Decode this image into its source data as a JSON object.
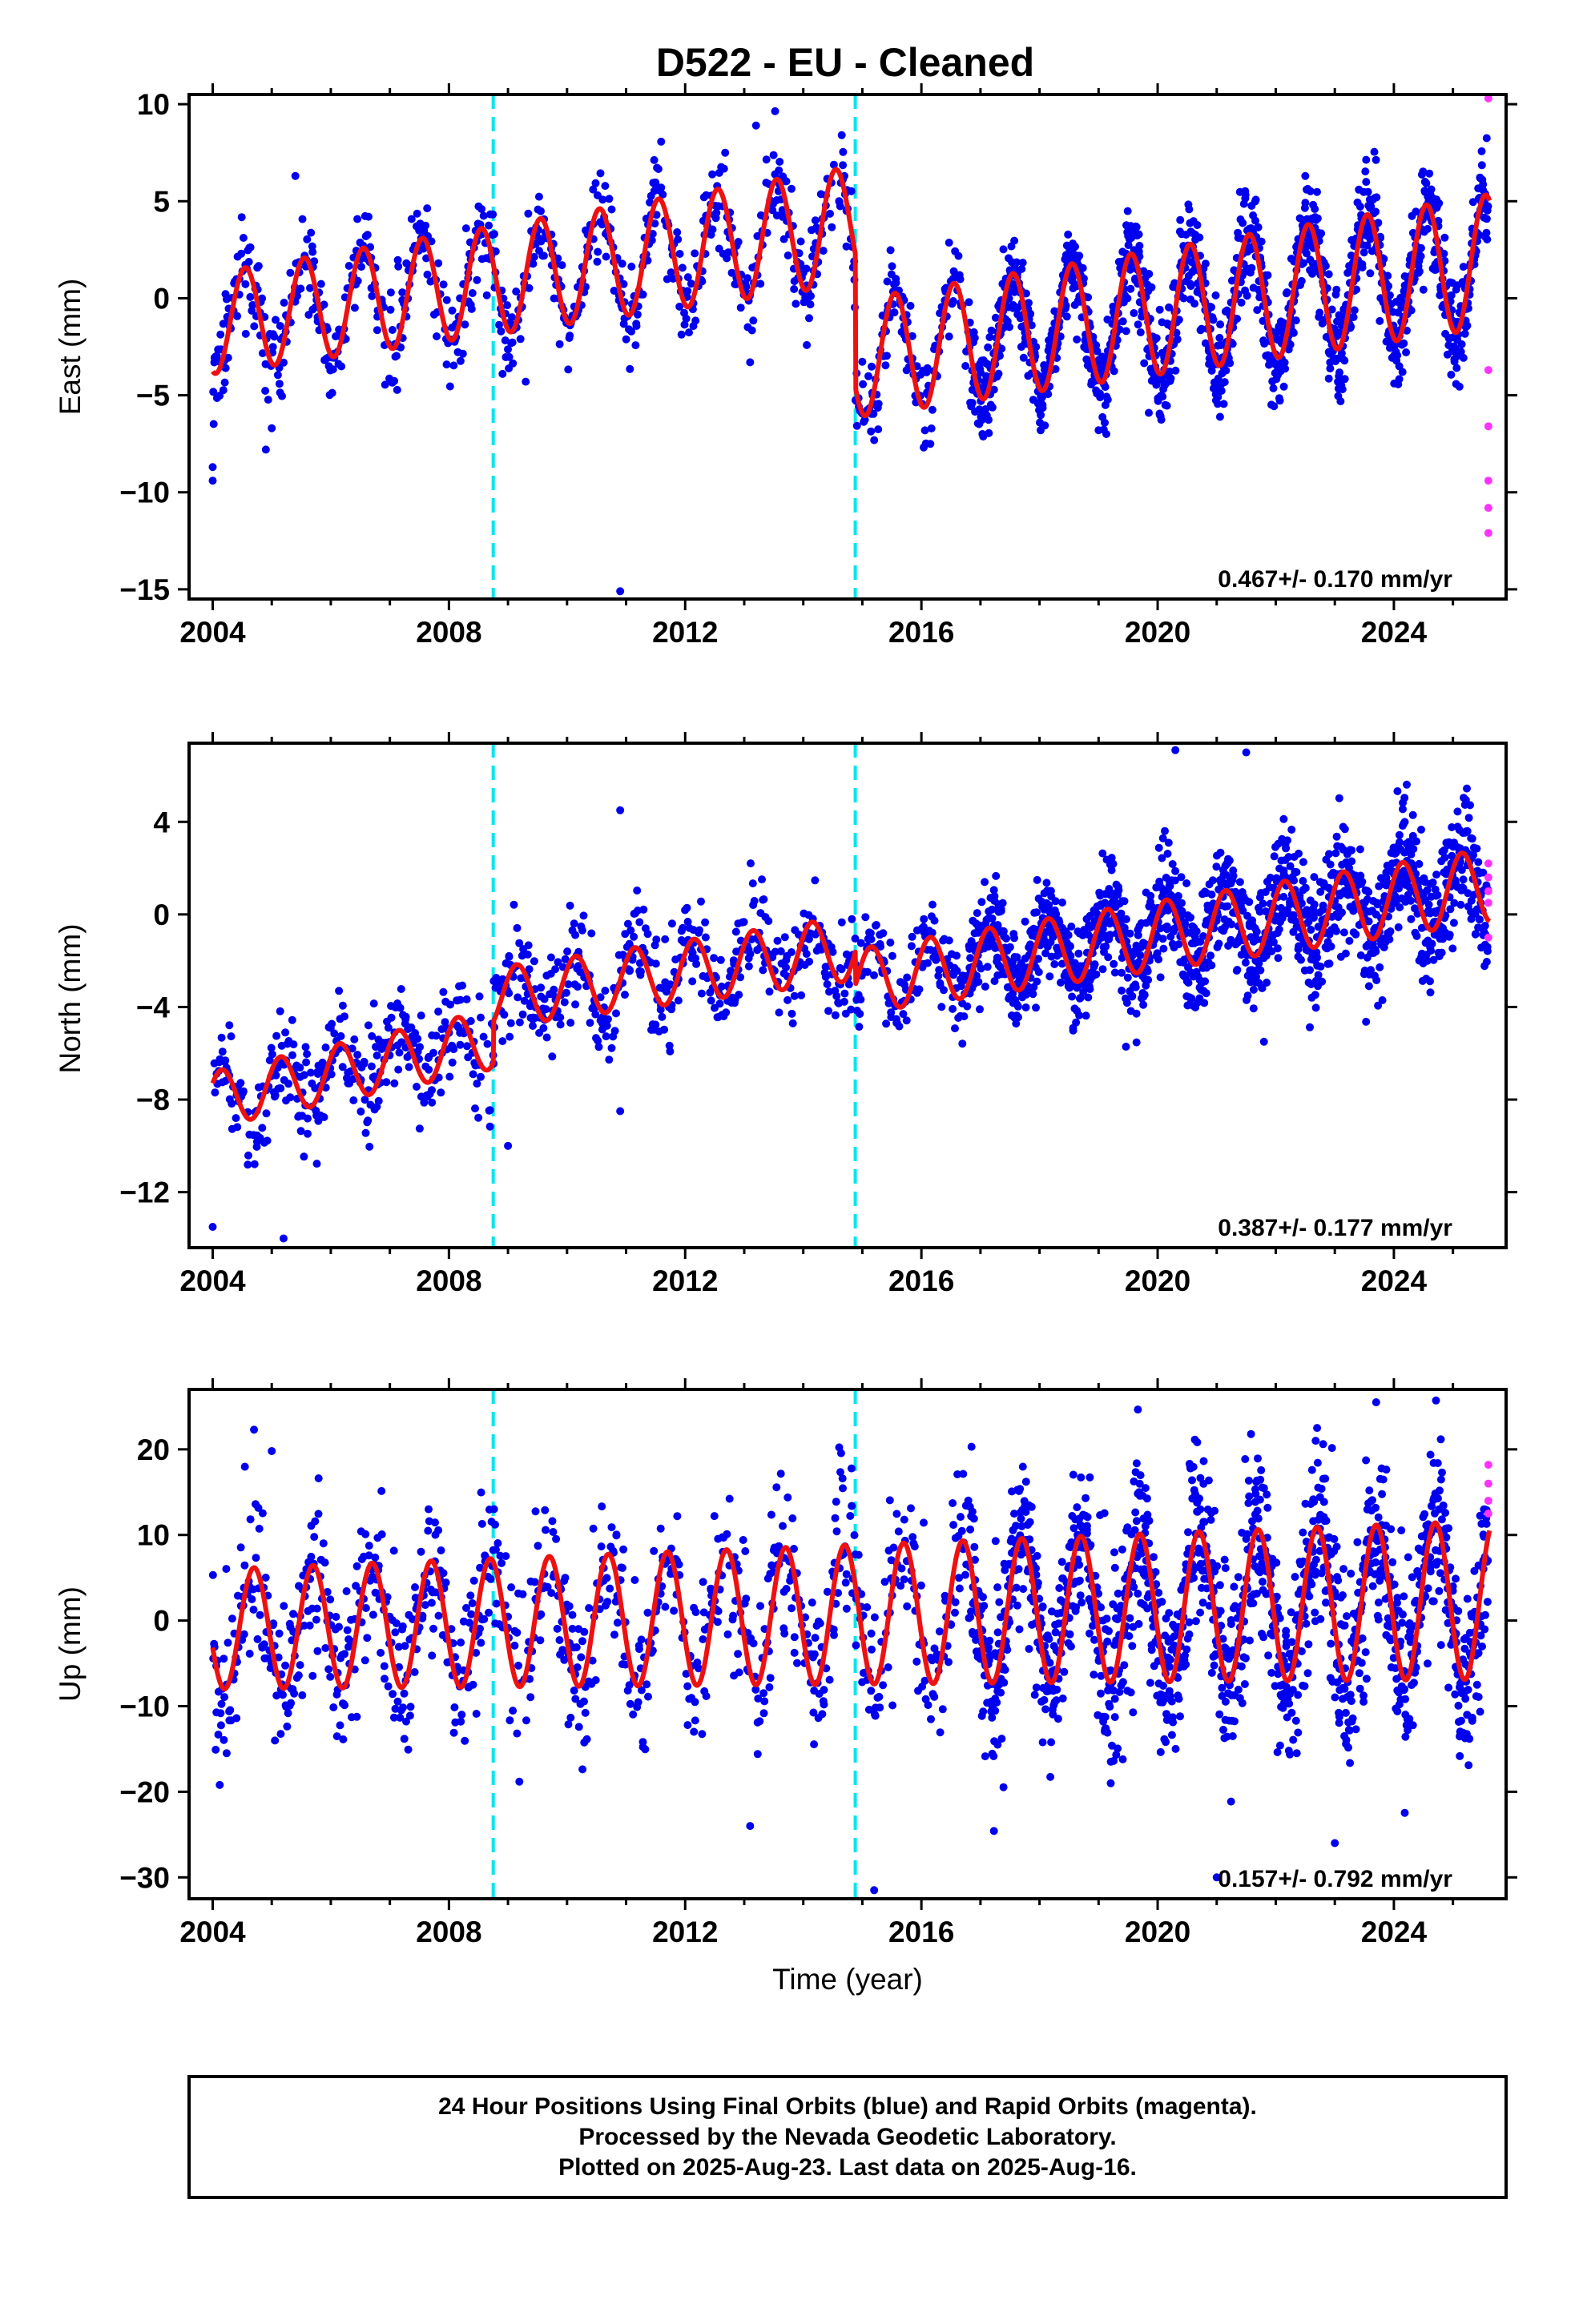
{
  "page": {
    "title": "D522  - EU - Cleaned"
  },
  "colors": {
    "final_orbits": "#0000ee",
    "rapid_orbits": "#ff33ff",
    "model_fit": "#ee1111",
    "equipment_change": "#00e5ee",
    "frame": "#000000"
  },
  "chart_data": [
    {
      "type": "scatter",
      "id": "east",
      "title": "D522  - EU - Cleaned",
      "xlabel": "",
      "ylabel": "East (mm)",
      "xlim": [
        2003.6,
        2025.9
      ],
      "ylim": [
        -15.5,
        10.5
      ],
      "x_ticks": [
        2004,
        2008,
        2012,
        2016,
        2020,
        2024
      ],
      "y_ticks": [
        10,
        5,
        0,
        -5,
        -10,
        -15
      ],
      "y_tick_labels": [
        "10",
        "5",
        "0",
        "−5",
        "−10",
        "−15"
      ],
      "rate_label": "0.467+/- 0.170 mm/yr",
      "equipment_changes": [
        2008.75,
        2014.88
      ],
      "model": {
        "rate": 0.467,
        "annual_amp": 2.6,
        "phase": 0.3,
        "segments": [
          {
            "start": 2004.0,
            "end": 2014.88,
            "offset": -1.3
          },
          {
            "start": 2014.88,
            "end": 2025.62,
            "offset": -3.1
          }
        ]
      },
      "scatter_density": {
        "early": 90,
        "late": 150,
        "late_from": 2016.8
      },
      "noise_sd": 1.2,
      "rapid_points": [
        {
          "x": 2025.6,
          "y": 10.3
        },
        {
          "x": 2025.6,
          "y": -3.7
        },
        {
          "x": 2025.6,
          "y": -6.6
        },
        {
          "x": 2025.6,
          "y": -9.4
        },
        {
          "x": 2025.6,
          "y": -10.8
        },
        {
          "x": 2025.6,
          "y": -12.1
        }
      ],
      "outliers": [
        {
          "x": 2004.0,
          "y": -9.4
        },
        {
          "x": 2004.0,
          "y": -8.7
        },
        {
          "x": 2004.9,
          "y": -7.8
        },
        {
          "x": 2005.0,
          "y": -6.7
        },
        {
          "x": 2005.4,
          "y": 6.3
        },
        {
          "x": 2009.3,
          "y": -4.3
        },
        {
          "x": 2010.9,
          "y": -15.1
        },
        {
          "x": 2013.2,
          "y": 8.9
        },
        {
          "x": 2013.1,
          "y": -3.3
        },
        {
          "x": 2019.0,
          "y": -6.8
        },
        {
          "x": 2022.5,
          "y": 6.3
        }
      ]
    },
    {
      "type": "scatter",
      "id": "north",
      "title": "",
      "xlabel": "",
      "ylabel": "North (mm)",
      "xlim": [
        2003.6,
        2025.9
      ],
      "ylim": [
        -14.4,
        7.4
      ],
      "x_ticks": [
        2004,
        2008,
        2012,
        2016,
        2020,
        2024
      ],
      "y_ticks": [
        4,
        0,
        -4,
        -8,
        -12
      ],
      "y_tick_labels": [
        "4",
        "0",
        "−4",
        "−8",
        "−12"
      ],
      "rate_label": "0.387+/- 0.177 mm/yr",
      "equipment_changes": [
        2008.75,
        2014.88
      ],
      "model": {
        "rate": 0.387,
        "annual_amp": 1.2,
        "phase": 0.9,
        "segments": [
          {
            "start": 2004.0,
            "end": 2008.75,
            "offset": -8.0,
            "rate": 0.55
          },
          {
            "start": 2008.75,
            "end": 2014.88,
            "offset": -3.6,
            "rate": 0.35
          },
          {
            "start": 2014.88,
            "end": 2025.62,
            "offset": -2.9,
            "rate": 0.387
          }
        ]
      },
      "scatter_density": {
        "early": 90,
        "late": 150,
        "late_from": 2016.8
      },
      "noise_sd": 1.1,
      "rapid_points": [
        {
          "x": 2025.6,
          "y": 2.2
        },
        {
          "x": 2025.6,
          "y": 1.6
        },
        {
          "x": 2025.6,
          "y": 1.0
        },
        {
          "x": 2025.6,
          "y": 0.5
        },
        {
          "x": 2025.6,
          "y": -1.0
        }
      ],
      "outliers": [
        {
          "x": 2004.0,
          "y": -13.5
        },
        {
          "x": 2005.2,
          "y": -14.0
        },
        {
          "x": 2010.9,
          "y": 4.5
        },
        {
          "x": 2010.9,
          "y": -8.5
        },
        {
          "x": 2009.0,
          "y": -10.0
        },
        {
          "x": 2020.3,
          "y": 7.1
        },
        {
          "x": 2021.5,
          "y": 7.0
        },
        {
          "x": 2021.8,
          "y": -5.5
        }
      ]
    },
    {
      "type": "scatter",
      "id": "up",
      "title": "",
      "xlabel": "Time (year)",
      "ylabel": "Up (mm)",
      "xlim": [
        2003.6,
        2025.9
      ],
      "ylim": [
        -32.5,
        27.0
      ],
      "x_ticks": [
        2004,
        2008,
        2012,
        2016,
        2020,
        2024
      ],
      "y_ticks": [
        20,
        10,
        0,
        -10,
        -20,
        -30
      ],
      "y_tick_labels": [
        "20",
        "10",
        "0",
        "−10",
        "−20",
        "−30"
      ],
      "rate_label": "0.157+/- 0.792 mm/yr",
      "equipment_changes": [
        2008.75,
        2014.88
      ],
      "model": {
        "rate": 0.157,
        "annual_amp": 7.0,
        "phase": 0.45,
        "segments": [
          {
            "start": 2004.0,
            "end": 2025.62,
            "offset": -1.0
          }
        ]
      },
      "scatter_density": {
        "early": 90,
        "late": 150,
        "late_from": 2016.8
      },
      "noise_sd": 4.8,
      "rapid_points": [
        {
          "x": 2025.6,
          "y": 18.2
        },
        {
          "x": 2025.6,
          "y": 16.0
        },
        {
          "x": 2025.6,
          "y": 14.0
        },
        {
          "x": 2025.6,
          "y": 12.5
        }
      ],
      "outliers": [
        {
          "x": 2004.7,
          "y": 22.3
        },
        {
          "x": 2005.0,
          "y": 19.8
        },
        {
          "x": 2013.1,
          "y": -24.0
        },
        {
          "x": 2015.2,
          "y": -31.5
        },
        {
          "x": 2022.7,
          "y": 22.5
        },
        {
          "x": 2023.0,
          "y": -26.0
        },
        {
          "x": 2023.7,
          "y": 25.5
        },
        {
          "x": 2021.0,
          "y": -30.0
        }
      ]
    }
  ],
  "footer": {
    "lines": [
      "24 Hour Positions Using Final Orbits (blue) and Rapid Orbits (magenta).",
      "Processed by the Nevada Geodetic Laboratory.",
      "Plotted on 2025-Aug-23. Last data on 2025-Aug-16."
    ]
  }
}
